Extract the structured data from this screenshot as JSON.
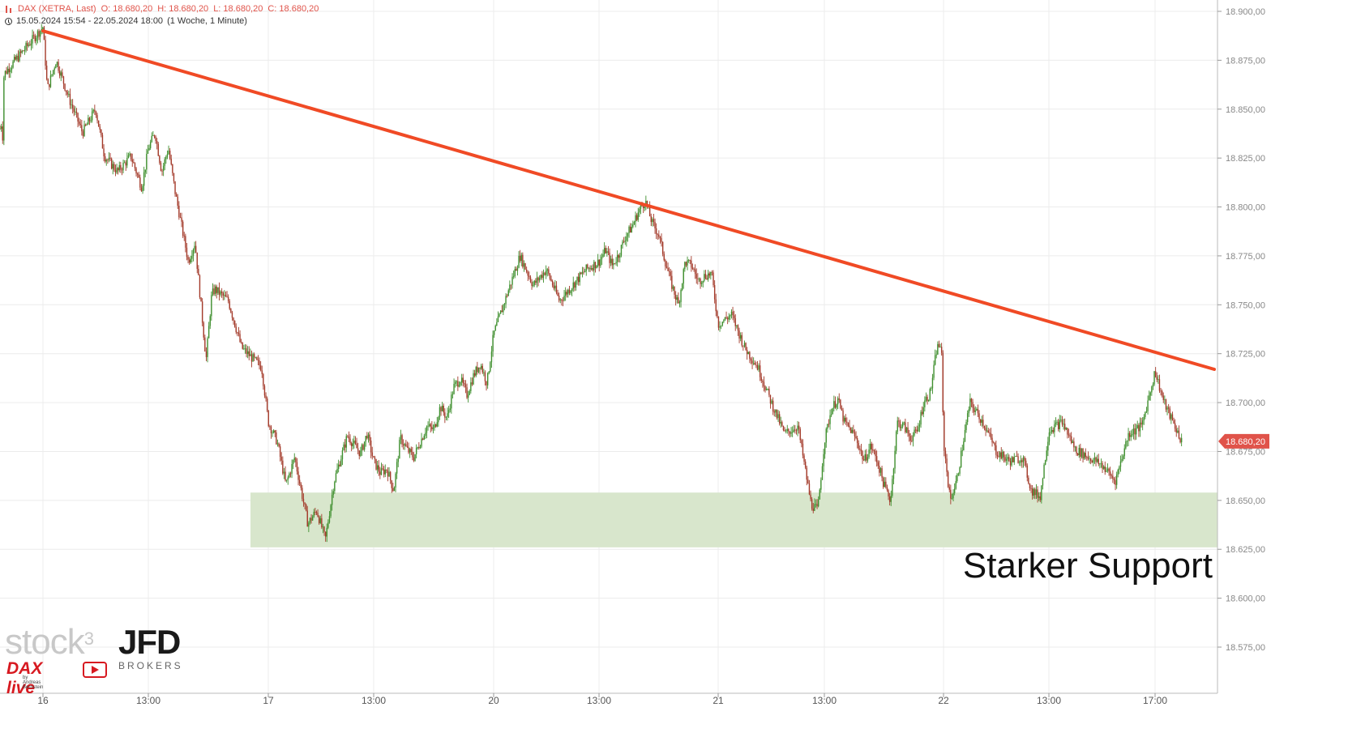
{
  "header": {
    "instrument_line": "DAX (XETRA, Last)",
    "open": "O: 18.680,20",
    "high": "H: 18.680,20",
    "low": "L: 18.680,20",
    "close": "C: 18.680,20",
    "range_line": "15.05.2024 15:54 - 22.05.2024 18:00",
    "interval": "(1 Woche, 1 Minute)"
  },
  "annotation": {
    "support_label": "Starker Support",
    "last_price_tag": "18.680,20"
  },
  "branding": {
    "stock3": "stock",
    "stock3_sup": "3",
    "jfd": "JFD",
    "brokers": "BROKERS",
    "daxlive": "DAX live",
    "byline": "by Andreas Bernstein"
  },
  "colors": {
    "trendline": "#f04a25",
    "support_zone": "#d8e6cc",
    "candle_up": "#3f8f2e",
    "candle_down": "#a33a2a",
    "price_tag": "#e0534a",
    "grid": "#ececec"
  },
  "chart_data": {
    "type": "candlestick",
    "title": "DAX (XETRA, Last)",
    "y_scale": "linear",
    "ylim": [
      18560,
      18905
    ],
    "y_ticks": [
      18575,
      18600,
      18625,
      18650,
      18675,
      18700,
      18725,
      18750,
      18775,
      18800,
      18825,
      18850,
      18875,
      18900
    ],
    "y_tick_labels": [
      "18.575,00",
      "18.600,00",
      "18.625,00",
      "18.650,00",
      "18.675,00",
      "18.700,00",
      "18.725,00",
      "18.750,00",
      "18.775,00",
      "18.800,00",
      "18.825,00",
      "18.850,00",
      "18.875,00",
      "18.900,00"
    ],
    "x_tick_labels": [
      "16",
      "13:00",
      "17",
      "13:00",
      "20",
      "13:00",
      "21",
      "13:00",
      "22",
      "13:00",
      "17:00"
    ],
    "x_tick_times": [
      "16 09:00",
      "16 13:00",
      "17 09:00",
      "17 13:00",
      "20 09:00",
      "20 13:00",
      "21 09:00",
      "21 13:00",
      "22 09:00",
      "22 13:00",
      "22 17:00"
    ],
    "session_start": "15 15:54",
    "session_end": "22 18:00",
    "price_path": [
      [
        "15 15:55",
        18840
      ],
      [
        "15 16:10",
        18872
      ],
      [
        "15 16:30",
        18835
      ],
      [
        "15 16:50",
        18826
      ],
      [
        "15 17:10",
        18855
      ],
      [
        "15 17:30",
        18868
      ],
      [
        "16 09:00",
        18892
      ],
      [
        "16 09:10",
        18860
      ],
      [
        "16 09:30",
        18875
      ],
      [
        "16 10:00",
        18855
      ],
      [
        "16 10:30",
        18838
      ],
      [
        "16 11:00",
        18850
      ],
      [
        "16 11:20",
        18826
      ],
      [
        "16 11:50",
        18818
      ],
      [
        "16 12:20",
        18826
      ],
      [
        "16 12:45",
        18810
      ],
      [
        "16 13:00",
        18830
      ],
      [
        "16 13:30",
        18838
      ],
      [
        "16 14:00",
        18818
      ],
      [
        "16 14:30",
        18830
      ],
      [
        "16 15:00",
        18808
      ],
      [
        "16 15:30",
        18790
      ],
      [
        "16 16:00",
        18772
      ],
      [
        "16 16:30",
        18782
      ],
      [
        "16 17:00",
        18746
      ],
      [
        "16 17:20",
        18722
      ],
      [
        "16 17:45",
        18755
      ],
      [
        "16 18:00",
        18758
      ],
      [
        "16 19:00",
        18752
      ],
      [
        "16 19:30",
        18740
      ],
      [
        "16 20:00",
        18728
      ],
      [
        "16 21:30",
        18718
      ],
      [
        "17 09:00",
        18690
      ],
      [
        "17 09:20",
        18680
      ],
      [
        "17 09:40",
        18658
      ],
      [
        "17 10:00",
        18672
      ],
      [
        "17 10:30",
        18638
      ],
      [
        "17 10:50",
        18645
      ],
      [
        "17 11:10",
        18630
      ],
      [
        "17 11:30",
        18660
      ],
      [
        "17 12:00",
        18683
      ],
      [
        "17 12:30",
        18674
      ],
      [
        "17 12:45",
        18684
      ],
      [
        "17 13:00",
        18670
      ],
      [
        "17 13:30",
        18664
      ],
      [
        "17 14:00",
        18666
      ],
      [
        "17 14:30",
        18655
      ],
      [
        "17 15:00",
        18682
      ],
      [
        "17 15:30",
        18676
      ],
      [
        "17 16:00",
        18672
      ],
      [
        "17 16:30",
        18680
      ],
      [
        "17 17:00",
        18688
      ],
      [
        "17 17:30",
        18686
      ],
      [
        "17 18:00",
        18698
      ],
      [
        "17 18:30",
        18692
      ],
      [
        "17 19:00",
        18708
      ],
      [
        "17 19:30",
        18712
      ],
      [
        "17 20:00",
        18704
      ],
      [
        "17 20:30",
        18714
      ],
      [
        "17 21:00",
        18720
      ],
      [
        "17 21:30",
        18710
      ],
      [
        "20 09:00",
        18735
      ],
      [
        "20 09:30",
        18755
      ],
      [
        "20 10:00",
        18775
      ],
      [
        "20 10:30",
        18760
      ],
      [
        "20 11:00",
        18768
      ],
      [
        "20 11:30",
        18752
      ],
      [
        "20 12:00",
        18760
      ],
      [
        "20 12:30",
        18768
      ],
      [
        "20 13:00",
        18772
      ],
      [
        "20 13:30",
        18778
      ],
      [
        "20 14:00",
        18770
      ],
      [
        "20 14:30",
        18776
      ],
      [
        "20 15:00",
        18785
      ],
      [
        "20 15:30",
        18790
      ],
      [
        "20 16:00",
        18798
      ],
      [
        "20 16:30",
        18803
      ],
      [
        "20 17:00",
        18792
      ],
      [
        "20 17:30",
        18786
      ],
      [
        "20 18:00",
        18772
      ],
      [
        "20 18:30",
        18760
      ],
      [
        "20 19:00",
        18750
      ],
      [
        "20 19:30",
        18772
      ],
      [
        "20 20:00",
        18770
      ],
      [
        "20 20:30",
        18762
      ],
      [
        "20 21:00",
        18765
      ],
      [
        "20 21:30",
        18766
      ],
      [
        "21 09:00",
        18740
      ],
      [
        "21 09:30",
        18745
      ],
      [
        "21 10:00",
        18728
      ],
      [
        "21 10:30",
        18718
      ],
      [
        "21 11:00",
        18700
      ],
      [
        "21 11:30",
        18684
      ],
      [
        "21 12:00",
        18688
      ],
      [
        "21 12:15",
        18668
      ],
      [
        "21 12:30",
        18648
      ],
      [
        "21 12:45",
        18645
      ],
      [
        "21 13:00",
        18680
      ],
      [
        "21 13:30",
        18696
      ],
      [
        "21 14:00",
        18702
      ],
      [
        "21 14:30",
        18690
      ],
      [
        "21 15:00",
        18686
      ],
      [
        "21 15:30",
        18680
      ],
      [
        "21 16:00",
        18670
      ],
      [
        "21 16:30",
        18678
      ],
      [
        "21 17:00",
        18670
      ],
      [
        "21 17:30",
        18658
      ],
      [
        "21 18:00",
        18650
      ],
      [
        "21 18:30",
        18690
      ],
      [
        "21 19:00",
        18688
      ],
      [
        "21 19:30",
        18682
      ],
      [
        "21 20:00",
        18685
      ],
      [
        "21 20:30",
        18700
      ],
      [
        "21 21:00",
        18705
      ],
      [
        "21 21:30",
        18728
      ],
      [
        "21 21:50",
        18730
      ],
      [
        "22 09:00",
        18680
      ],
      [
        "22 09:15",
        18650
      ],
      [
        "22 09:30",
        18660
      ],
      [
        "22 10:00",
        18700
      ],
      [
        "22 10:30",
        18690
      ],
      [
        "22 11:00",
        18675
      ],
      [
        "22 11:30",
        18670
      ],
      [
        "22 12:00",
        18672
      ],
      [
        "22 12:20",
        18655
      ],
      [
        "22 12:40",
        18652
      ],
      [
        "22 13:00",
        18686
      ],
      [
        "22 13:30",
        18690
      ],
      [
        "22 14:00",
        18676
      ],
      [
        "22 14:30",
        18672
      ],
      [
        "22 15:00",
        18668
      ],
      [
        "22 15:30",
        18660
      ],
      [
        "22 16:00",
        18684
      ],
      [
        "22 16:30",
        18688
      ],
      [
        "22 17:00",
        18716
      ],
      [
        "22 17:20",
        18700
      ],
      [
        "22 17:40",
        18690
      ],
      [
        "22 18:00",
        18680
      ]
    ],
    "trendline": {
      "from": [
        "16 09:00",
        18890
      ],
      "to": [
        "22 18:00",
        18717
      ]
    },
    "support_zone": {
      "from": "17 08:00",
      "to": "22 18:00",
      "low": 18626,
      "high": 18654,
      "label": "Starker Support"
    },
    "last_price": 18680.2,
    "grid": true
  }
}
